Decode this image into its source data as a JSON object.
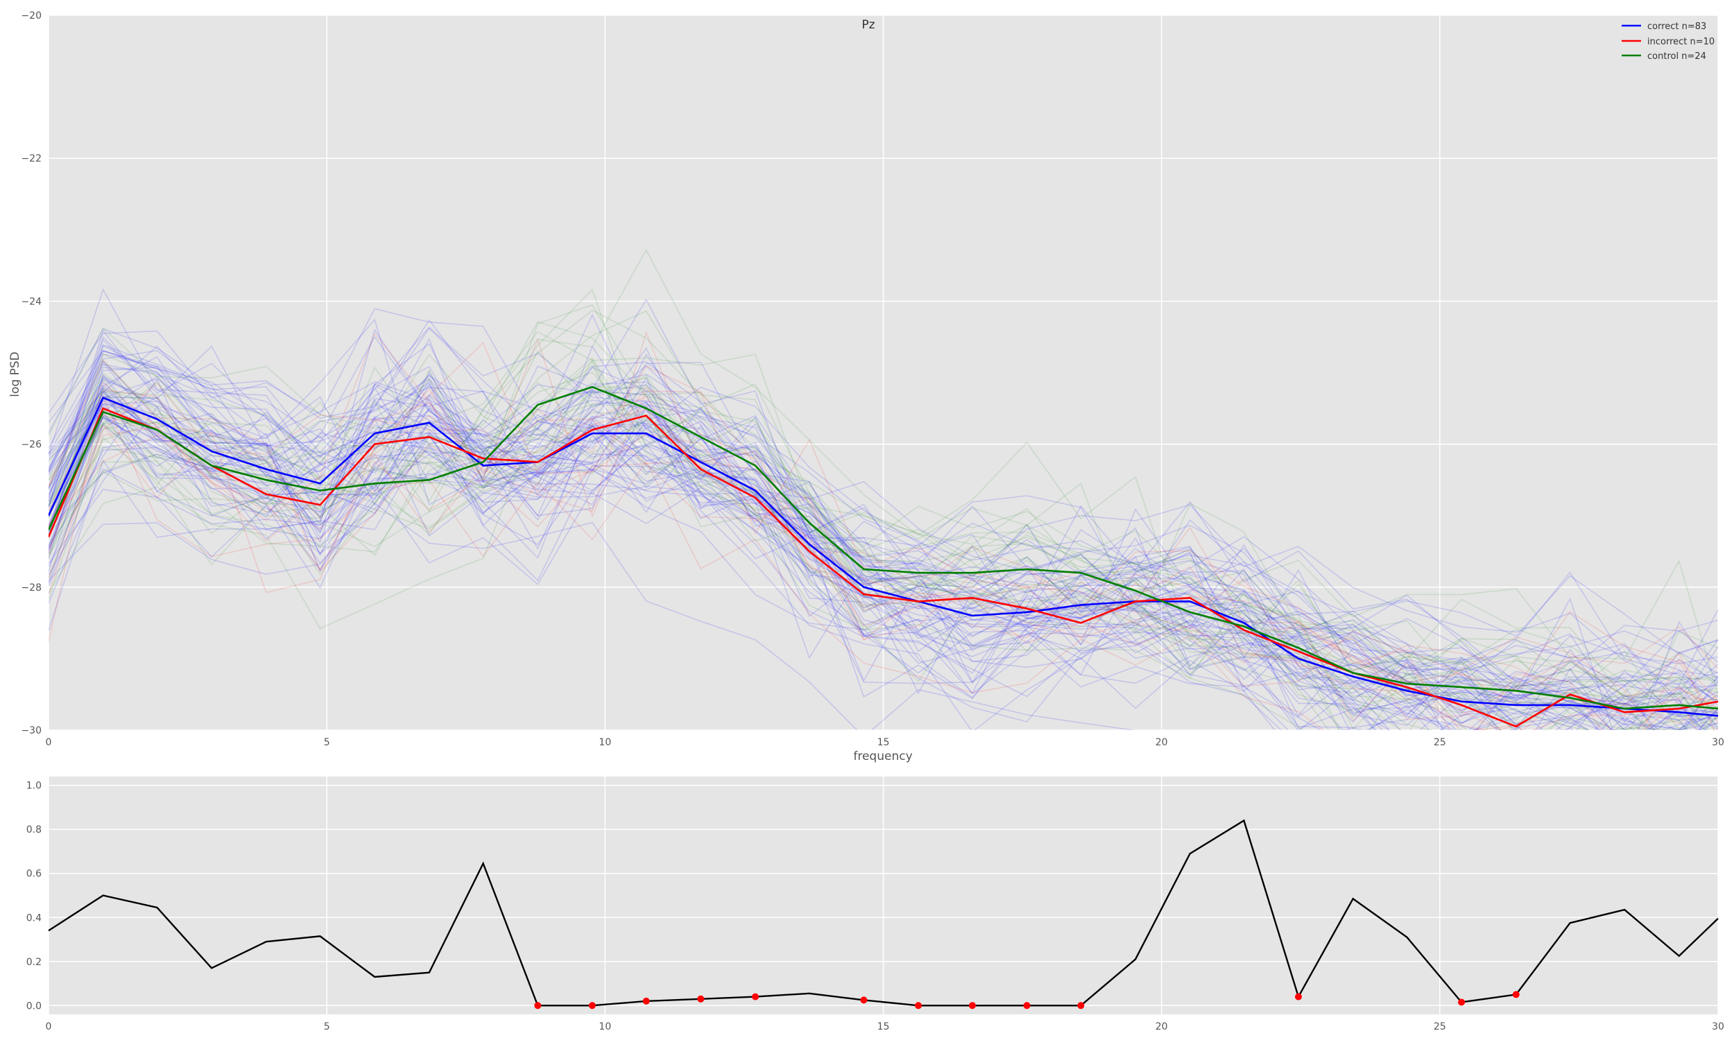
{
  "chart_data": [
    {
      "type": "line",
      "title": "Pz",
      "xlabel": "frequency",
      "ylabel": "log PSD",
      "xlim": [
        0,
        30
      ],
      "ylim": [
        -30,
        -20
      ],
      "x_ticks": [
        "0",
        "5",
        "10",
        "15",
        "20",
        "25",
        "30"
      ],
      "y_ticks": [
        "-30",
        "-28",
        "-26",
        "-24",
        "-22",
        "-20"
      ],
      "grid": true,
      "legend_position": "top-right",
      "x": [
        0,
        0.98,
        1.95,
        2.93,
        3.91,
        4.88,
        5.86,
        6.84,
        7.81,
        8.79,
        9.77,
        10.74,
        11.72,
        12.7,
        13.67,
        14.65,
        15.63,
        16.6,
        17.58,
        18.55,
        19.53,
        20.51,
        21.48,
        22.46,
        23.44,
        24.41,
        25.39,
        26.37,
        27.34,
        28.32,
        29.3,
        30
      ],
      "series": [
        {
          "name": "correct n=83",
          "color": "#0000ff",
          "values": [
            -27.0,
            -25.35,
            -25.65,
            -26.1,
            -26.35,
            -26.55,
            -25.85,
            -25.7,
            -26.3,
            -26.25,
            -25.85,
            -25.85,
            -26.25,
            -26.65,
            -27.4,
            -28.0,
            -28.2,
            -28.4,
            -28.35,
            -28.25,
            -28.2,
            -28.2,
            -28.5,
            -29.0,
            -29.25,
            -29.45,
            -29.6,
            -29.65,
            -29.65,
            -29.7,
            -29.75,
            -29.8
          ]
        },
        {
          "name": "incorrect n=10",
          "color": "#ff0000",
          "values": [
            -27.3,
            -25.5,
            -25.8,
            -26.3,
            -26.7,
            -26.85,
            -26.0,
            -25.9,
            -26.2,
            -26.25,
            -25.8,
            -25.6,
            -26.35,
            -26.75,
            -27.5,
            -28.1,
            -28.2,
            -28.15,
            -28.3,
            -28.5,
            -28.2,
            -28.15,
            -28.6,
            -28.9,
            -29.2,
            -29.4,
            -29.65,
            -29.95,
            -29.5,
            -29.75,
            -29.7,
            -29.6
          ]
        },
        {
          "name": "control n=24",
          "color": "#007f00",
          "values": [
            -27.2,
            -25.55,
            -25.8,
            -26.3,
            -26.5,
            -26.65,
            -26.55,
            -26.5,
            -26.25,
            -25.45,
            -25.2,
            -25.5,
            -25.9,
            -26.3,
            -27.1,
            -27.75,
            -27.8,
            -27.8,
            -27.75,
            -27.8,
            -28.05,
            -28.35,
            -28.55,
            -28.85,
            -29.2,
            -29.35,
            -29.4,
            -29.45,
            -29.55,
            -29.7,
            -29.65,
            -29.7
          ]
        }
      ],
      "faint_traces_note_colors": [
        "#0000ff",
        "#ff0000",
        "#007f00"
      ]
    },
    {
      "type": "line",
      "title": "",
      "xlabel": "",
      "ylabel": "",
      "xlim": [
        0,
        30
      ],
      "ylim": [
        -0.04,
        1.04
      ],
      "x_ticks": [
        "0",
        "5",
        "10",
        "15",
        "20",
        "25",
        "30"
      ],
      "y_ticks": [
        "0.0",
        "0.2",
        "0.4",
        "0.6",
        "0.8",
        "1.0"
      ],
      "grid": true,
      "x": [
        0,
        0.98,
        1.95,
        2.93,
        3.91,
        4.88,
        5.86,
        6.84,
        7.81,
        8.79,
        9.77,
        10.74,
        11.72,
        12.7,
        13.67,
        14.65,
        15.63,
        16.6,
        17.58,
        18.55,
        19.53,
        20.51,
        21.48,
        22.46,
        23.44,
        24.41,
        25.39,
        26.37,
        27.34,
        28.32,
        29.3,
        30
      ],
      "values": [
        0.34,
        0.5,
        0.445,
        0.17,
        0.29,
        0.315,
        0.13,
        0.15,
        0.645,
        0.0,
        0.0,
        0.02,
        0.03,
        0.04,
        0.055,
        0.025,
        0.0,
        0.0,
        0.0,
        0.0,
        0.21,
        0.69,
        0.84,
        0.04,
        0.485,
        0.31,
        0.015,
        0.05,
        0.375,
        0.435,
        0.225,
        0.395
      ],
      "line_color": "#000000",
      "highlight_color": "#ff0000",
      "highlight_indices": [
        9,
        10,
        11,
        12,
        13,
        15,
        16,
        17,
        18,
        19,
        23,
        26,
        27
      ]
    }
  ]
}
